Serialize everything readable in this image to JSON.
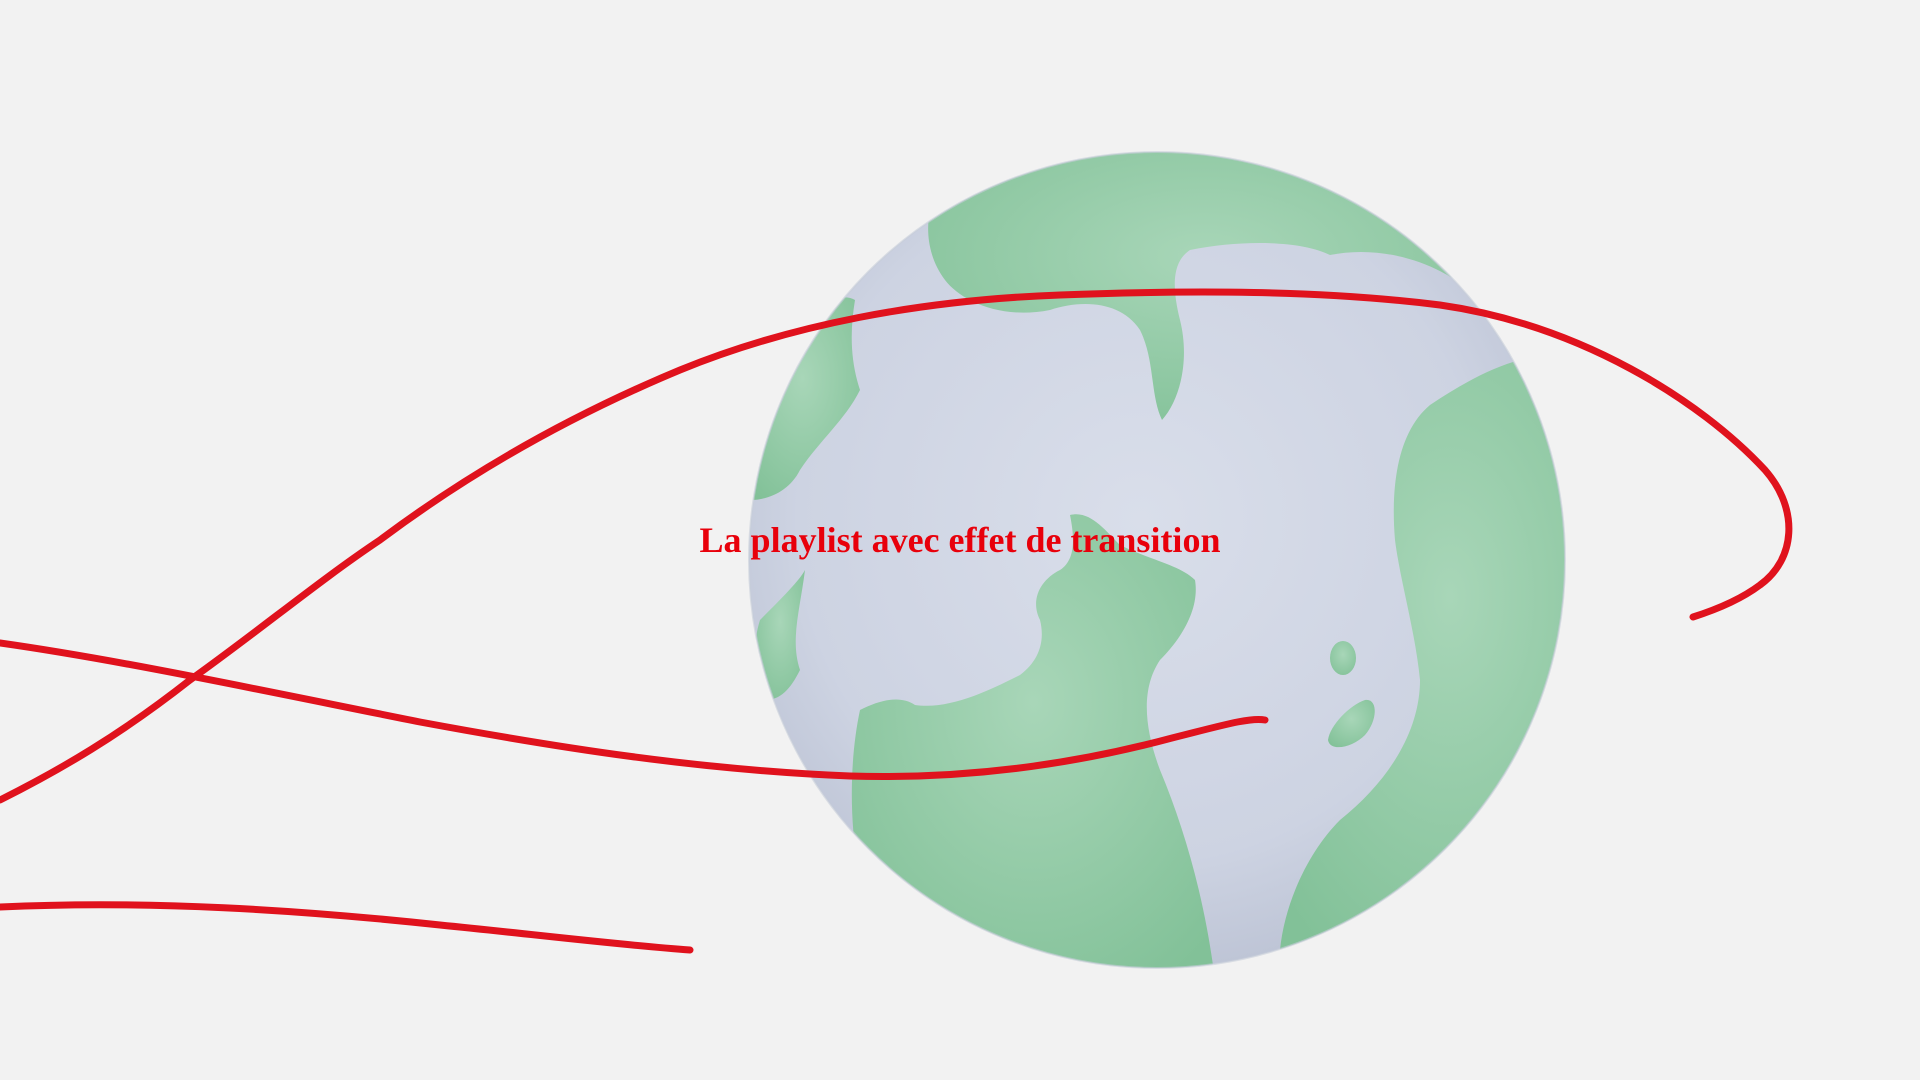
{
  "slide": {
    "title": "La playlist avec effet de transition"
  },
  "colors": {
    "background": "#f2f2f2",
    "ocean": "#cfd5e3",
    "land": "#8ec9a3",
    "land_light": "#afd9c0",
    "stroke": "#e0121d",
    "title": "#e8000b"
  },
  "illustration": {
    "subject": "globe-icon",
    "overlay": "red-orbit-scribble"
  }
}
